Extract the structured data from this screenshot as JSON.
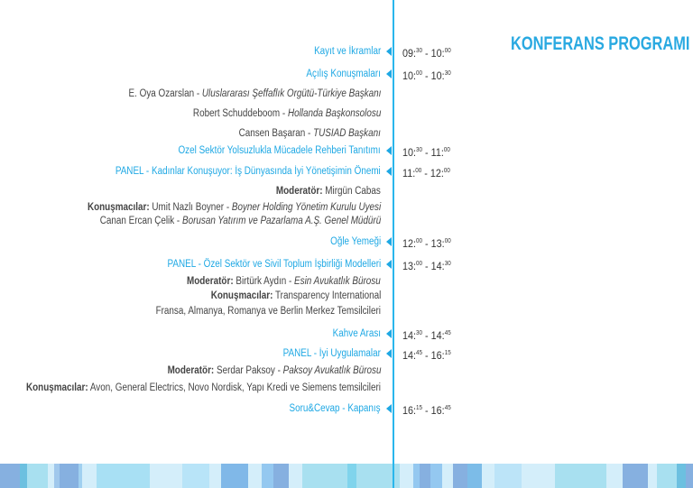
{
  "title": "KONFERANS PROGRAMI",
  "colors": {
    "accent": "#1ea8e4",
    "text": "#444444"
  },
  "items": [
    {
      "label": "Kayıt ve İkramlar",
      "time": {
        "sh": "09",
        "sm": "30",
        "eh": "10",
        "em": "00"
      }
    },
    {
      "label": "Açılış Konuşmaları",
      "time": {
        "sh": "10",
        "sm": "00",
        "eh": "10",
        "em": "30"
      }
    },
    {
      "name": "E. Oya Özarslan",
      "role": "Uluslararası Şeffaflık Örgütü-Türkiye Başkanı"
    },
    {
      "name": "Robert Schuddeboom",
      "role": "Hollanda Başkonsolosu"
    },
    {
      "name": "Cansen Başaran",
      "role": "TÜSİAD Başkanı"
    },
    {
      "label": "Özel Sektör Yolsuzlukla Mücadele Rehberi Tanıtımı",
      "time": {
        "sh": "10",
        "sm": "30",
        "eh": "11",
        "em": "00"
      }
    },
    {
      "label": "PANEL  - Kadınlar Konuşuyor: İş Dünyasında İyi Yönetişimin Önemi",
      "time": {
        "sh": "11",
        "sm": "00",
        "eh": "12",
        "em": "00"
      }
    },
    {
      "bold": "Moderatör:",
      "text": "Mirgün Cabas"
    },
    {
      "bold": "Konuşmacılar:",
      "text": "Ümit Nazlı Boyner - ",
      "role": "Boyner Holding Yönetim Kurulu Üyesi"
    },
    {
      "name": "Canan Ercan Çelik",
      "role": "Borusan Yatırım ve Pazarlama A.Ş. Genel Müdürü"
    },
    {
      "label": "Öğle Yemeği",
      "time": {
        "sh": "12",
        "sm": "00",
        "eh": "13",
        "em": "00"
      }
    },
    {
      "label": "PANEL - Özel Sektör ve Sivil Toplum İşbirliği Modelleri",
      "time": {
        "sh": "13",
        "sm": "00",
        "eh": "14",
        "em": "30"
      }
    },
    {
      "bold": "Moderatör:",
      "text": "Birtürk Aydın - ",
      "role": "Esin Avukatlık Bürosu"
    },
    {
      "bold": "Konuşmacılar:",
      "text": "Transparency International"
    },
    {
      "text": "Fransa, Almanya, Romanya ve Berlin Merkez Temsilcileri"
    },
    {
      "label": "Kahve Arası",
      "time": {
        "sh": "14",
        "sm": "30",
        "eh": "14",
        "em": "45"
      }
    },
    {
      "label": "PANEL  - İyi Uygulamalar",
      "time": {
        "sh": "14",
        "sm": "45",
        "eh": "16",
        "em": "15"
      }
    },
    {
      "bold": "Moderatör:",
      "text": "Serdar Paksoy - ",
      "role": "Paksoy Avukatlık Bürosu"
    },
    {
      "bold": "Konuşmacılar:",
      "text": "Avon, General Electrics, Novo Nordisk, Yapı Kredi ve Siemens temsilcileri"
    },
    {
      "label": "Soru&Cevap - Kapanış",
      "time": {
        "sh": "16",
        "sm": "15",
        "eh": "16",
        "em": "45"
      }
    }
  ]
}
